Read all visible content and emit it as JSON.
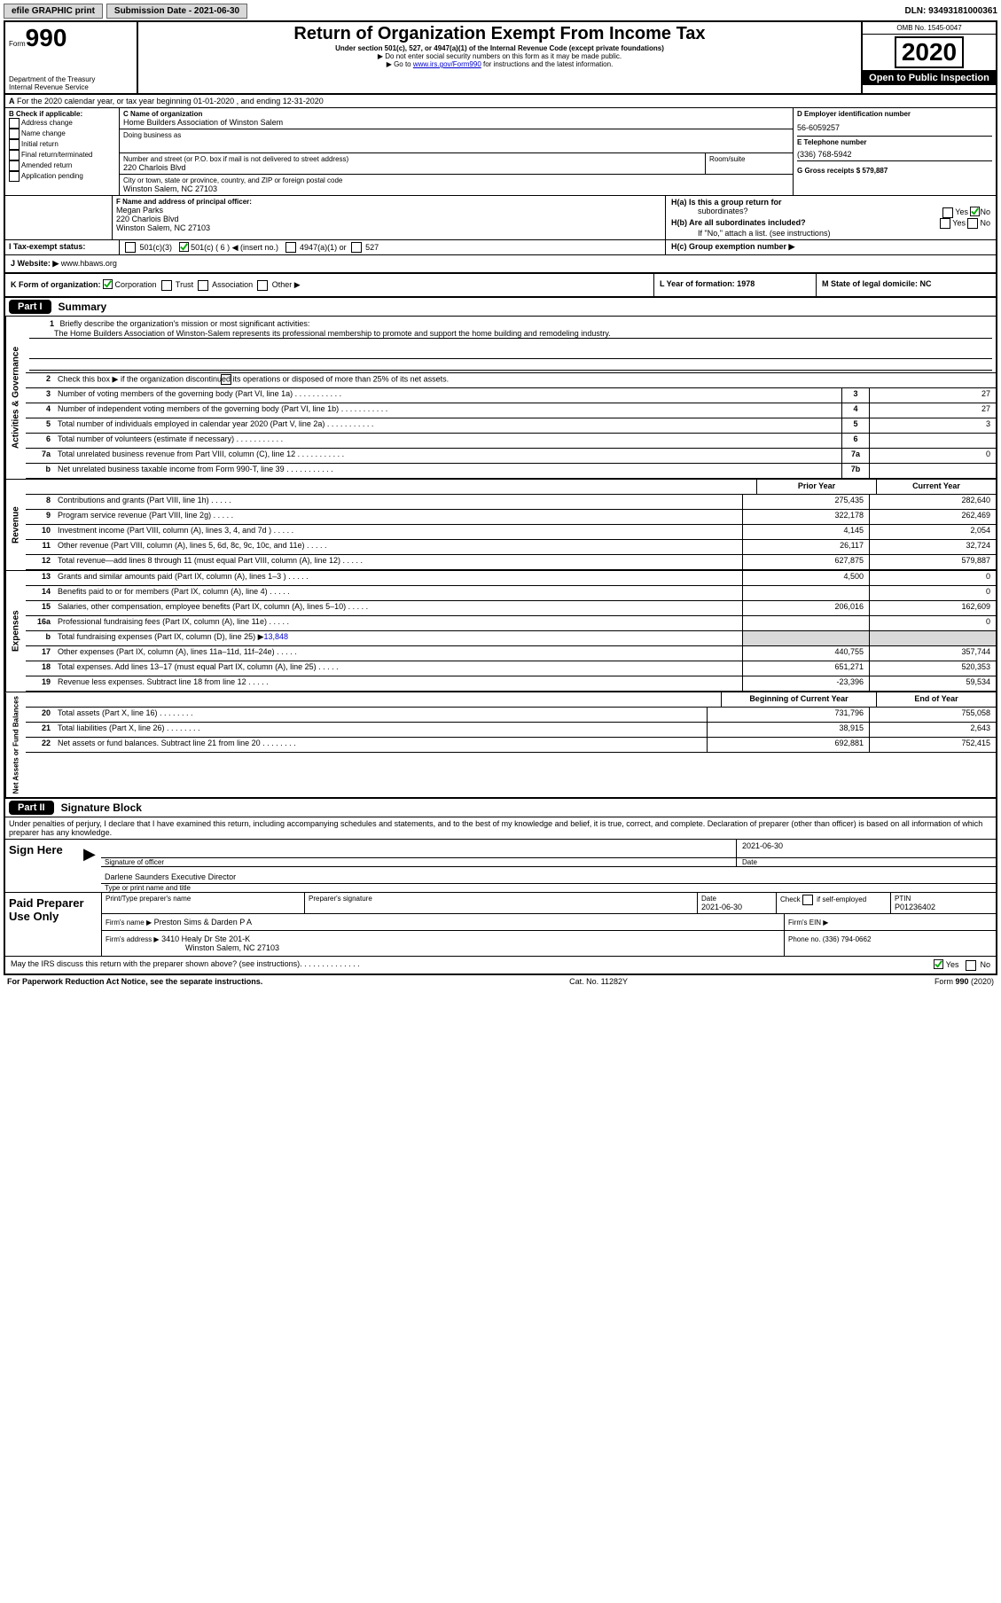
{
  "topbar": {
    "efile": "efile GRAPHIC print",
    "submission_label": "Submission Date - 2021-06-30",
    "dln": "DLN: 93493181000361"
  },
  "header": {
    "form_prefix": "Form",
    "form_number": "990",
    "title": "Return of Organization Exempt From Income Tax",
    "subtitle": "Under section 501(c), 527, or 4947(a)(1) of the Internal Revenue Code (except private foundations)",
    "note1": "▶ Do not enter social security numbers on this form as it may be made public.",
    "note2_pre": "▶ Go to ",
    "note2_link": "www.irs.gov/Form990",
    "note2_post": " for instructions and the latest information.",
    "dept": "Department of the Treasury\nInternal Revenue Service",
    "omb": "OMB No. 1545-0047",
    "year": "2020",
    "open": "Open to Public Inspection"
  },
  "periodA": "For the 2020 calendar year, or tax year beginning 01-01-2020    , and ending 12-31-2020",
  "sectionB": {
    "title": "B Check if applicable:",
    "opts": [
      "Address change",
      "Name change",
      "Initial return",
      "Final return/terminated",
      "Amended return",
      "Application pending"
    ]
  },
  "sectionC": {
    "name_label": "C Name of organization",
    "name": "Home Builders Association of Winston Salem",
    "dba_label": "Doing business as",
    "addr_label": "Number and street (or P.O. box if mail is not delivered to street address)",
    "room_label": "Room/suite",
    "addr": "220 Charlois Blvd",
    "city_label": "City or town, state or province, country, and ZIP or foreign postal code",
    "city": "Winston Salem, NC  27103"
  },
  "sectionD": {
    "label": "D Employer identification number",
    "value": "56-6059257"
  },
  "sectionE": {
    "label": "E Telephone number",
    "value": "(336) 768-5942"
  },
  "sectionG": {
    "label": "G Gross receipts $ 579,887"
  },
  "sectionF": {
    "label": "F  Name and address of principal officer:",
    "name": "Megan Parks",
    "addr1": "220 Charlois Blvd",
    "addr2": "Winston Salem, NC  27103"
  },
  "sectionH": {
    "a": "H(a)  Is this a group return for",
    "a2": "subordinates?",
    "b": "H(b)  Are all subordinates included?",
    "b2": "If \"No,\" attach a list. (see instructions)",
    "c": "H(c)  Group exemption number ▶",
    "yes": "Yes",
    "no": "No"
  },
  "sectionI": {
    "label": "I   Tax-exempt status:",
    "c3": "501(c)(3)",
    "c": "501(c) ( 6 ) ◀ (insert no.)",
    "a1": "4947(a)(1) or",
    "s527": "527"
  },
  "sectionJ": {
    "label": "J   Website: ▶",
    "value": "www.hbaws.org"
  },
  "sectionK": {
    "label": "K Form of organization:",
    "corp": "Corporation",
    "trust": "Trust",
    "assoc": "Association",
    "other": "Other ▶"
  },
  "sectionL": {
    "label": "L Year of formation: 1978"
  },
  "sectionM": {
    "label": "M State of legal domicile: NC"
  },
  "partI": {
    "label": "Part I",
    "title": "Summary",
    "line1_label": "Briefly describe the organization's mission or most significant activities:",
    "line1_text": "The Home Builders Association of Winston-Salem represents its professional membership to promote and support the home building and remodeling industry.",
    "line2": "Check this box ▶        if the organization discontinued its operations or disposed of more than 25% of its net assets.",
    "col_prior": "Prior Year",
    "col_current": "Current Year",
    "col_begin": "Beginning of Current Year",
    "col_end": "End of Year",
    "rows_gov": [
      {
        "n": "3",
        "label": "Number of voting members of the governing body (Part VI, line 1a)",
        "box": "3",
        "val": "27"
      },
      {
        "n": "4",
        "label": "Number of independent voting members of the governing body (Part VI, line 1b)",
        "box": "4",
        "val": "27"
      },
      {
        "n": "5",
        "label": "Total number of individuals employed in calendar year 2020 (Part V, line 2a)",
        "box": "5",
        "val": "3"
      },
      {
        "n": "6",
        "label": "Total number of volunteers (estimate if necessary)",
        "box": "6",
        "val": ""
      },
      {
        "n": "7a",
        "label": "Total unrelated business revenue from Part VIII, column (C), line 12",
        "box": "7a",
        "val": "0"
      },
      {
        "n": "b",
        "label": "Net unrelated business taxable income from Form 990-T, line 39",
        "box": "7b",
        "val": ""
      }
    ],
    "rows_rev": [
      {
        "n": "8",
        "label": "Contributions and grants (Part VIII, line 1h)",
        "py": "275,435",
        "cy": "282,640"
      },
      {
        "n": "9",
        "label": "Program service revenue (Part VIII, line 2g)",
        "py": "322,178",
        "cy": "262,469"
      },
      {
        "n": "10",
        "label": "Investment income (Part VIII, column (A), lines 3, 4, and 7d )",
        "py": "4,145",
        "cy": "2,054"
      },
      {
        "n": "11",
        "label": "Other revenue (Part VIII, column (A), lines 5, 6d, 8c, 9c, 10c, and 11e)",
        "py": "26,117",
        "cy": "32,724"
      },
      {
        "n": "12",
        "label": "Total revenue—add lines 8 through 11 (must equal Part VIII, column (A), line 12)",
        "py": "627,875",
        "cy": "579,887"
      }
    ],
    "rows_exp": [
      {
        "n": "13",
        "label": "Grants and similar amounts paid (Part IX, column (A), lines 1–3 )",
        "py": "4,500",
        "cy": "0"
      },
      {
        "n": "14",
        "label": "Benefits paid to or for members (Part IX, column (A), line 4)",
        "py": "",
        "cy": "0"
      },
      {
        "n": "15",
        "label": "Salaries, other compensation, employee benefits (Part IX, column (A), lines 5–10)",
        "py": "206,016",
        "cy": "162,609"
      },
      {
        "n": "16a",
        "label": "Professional fundraising fees (Part IX, column (A), line 11e)",
        "py": "",
        "cy": "0"
      },
      {
        "n": "b",
        "label": "Total fundraising expenses (Part IX, column (D), line 25) ▶13,848",
        "py": "gray",
        "cy": "gray"
      },
      {
        "n": "17",
        "label": "Other expenses (Part IX, column (A), lines 11a–11d, 11f–24e)",
        "py": "440,755",
        "cy": "357,744"
      },
      {
        "n": "18",
        "label": "Total expenses. Add lines 13–17 (must equal Part IX, column (A), line 25)",
        "py": "651,271",
        "cy": "520,353"
      },
      {
        "n": "19",
        "label": "Revenue less expenses. Subtract line 18 from line 12",
        "py": "-23,396",
        "cy": "59,534"
      }
    ],
    "rows_net": [
      {
        "n": "20",
        "label": "Total assets (Part X, line 16)",
        "py": "731,796",
        "cy": "755,058"
      },
      {
        "n": "21",
        "label": "Total liabilities (Part X, line 26)",
        "py": "38,915",
        "cy": "2,643"
      },
      {
        "n": "22",
        "label": "Net assets or fund balances. Subtract line 21 from line 20",
        "py": "692,881",
        "cy": "752,415"
      }
    ],
    "vlabels": {
      "gov": "Activities & Governance",
      "rev": "Revenue",
      "exp": "Expenses",
      "net": "Net Assets or Fund Balances"
    }
  },
  "partII": {
    "label": "Part II",
    "title": "Signature Block",
    "decl": "Under penalties of perjury, I declare that I have examined this return, including accompanying schedules and statements, and to the best of my knowledge and belief, it is true, correct, and complete. Declaration of preparer (other than officer) is based on all information of which preparer has any knowledge.",
    "sign_here": "Sign Here",
    "sig_officer": "Signature of officer",
    "sig_date_label": "Date",
    "sig_date": "2021-06-30",
    "name_title": "Darlene Saunders  Executive Director",
    "name_title_label": "Type or print name and title",
    "paid": "Paid Preparer Use Only",
    "prep_name_label": "Print/Type preparer's name",
    "prep_sig_label": "Preparer's signature",
    "prep_date_label": "Date",
    "prep_date": "2021-06-30",
    "check_self": "Check         if self-employed",
    "ptin_label": "PTIN",
    "ptin": "P01236402",
    "firm_name_label": "Firm's name     ▶",
    "firm_name": "Preston Sims & Darden P A",
    "firm_ein_label": "Firm's EIN ▶",
    "firm_addr_label": "Firm's address ▶",
    "firm_addr1": "3410 Healy Dr Ste 201-K",
    "firm_addr2": "Winston Salem, NC  27103",
    "phone_label": "Phone no. (336) 794-0662",
    "discuss": "May the IRS discuss this return with the preparer shown above? (see instructions)"
  },
  "footer": {
    "left": "For Paperwork Reduction Act Notice, see the separate instructions.",
    "mid": "Cat. No. 11282Y",
    "right": "Form 990 (2020)"
  },
  "colors": {
    "link": "#0000cc",
    "black": "#000000",
    "gray": "#d9d9d9"
  }
}
